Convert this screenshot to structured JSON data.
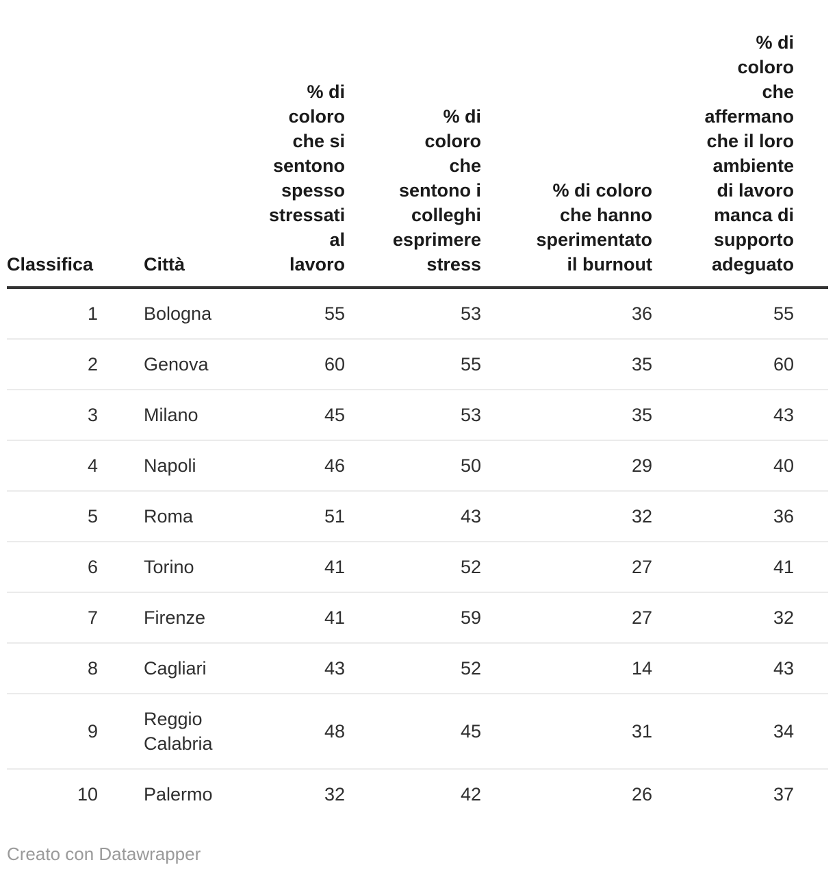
{
  "chart_data": {
    "type": "table",
    "title": "",
    "columns": [
      "Classifica",
      "Città",
      "% di coloro che si sentono spesso stressati al lavoro",
      "% di coloro che sentono i colleghi esprimere stress",
      "% di coloro che hanno sperimentato il burnout",
      "% di coloro che affermano che il loro ambiente di lavoro manca di supporto adeguato"
    ],
    "rows": [
      [
        1,
        "Bologna",
        55,
        53,
        36,
        55
      ],
      [
        2,
        "Genova",
        60,
        55,
        35,
        60
      ],
      [
        3,
        "Milano",
        45,
        53,
        35,
        43
      ],
      [
        4,
        "Napoli",
        46,
        50,
        29,
        40
      ],
      [
        5,
        "Roma",
        51,
        43,
        32,
        36
      ],
      [
        6,
        "Torino",
        41,
        52,
        27,
        41
      ],
      [
        7,
        "Firenze",
        41,
        59,
        27,
        32
      ],
      [
        8,
        "Cagliari",
        43,
        52,
        14,
        43
      ],
      [
        9,
        "Reggio Calabria",
        48,
        45,
        31,
        34
      ],
      [
        10,
        "Palermo",
        32,
        42,
        26,
        37
      ]
    ]
  },
  "table": {
    "header_display": [
      "Classifica",
      "Città",
      "% di\ncoloro\nche si\nsentono\nspesso\nstressati\nal lavoro",
      "% di\ncoloro\nche\nsentono i\ncolleghi\nesprimere\nstress",
      "% di coloro\nche hanno\nsperimentato\nil burnout",
      "% di\ncoloro\nche\naffermano\nche il loro\nambiente\ndi lavoro\nmanca di\nsupporto\nadeguato"
    ]
  },
  "footer": {
    "attribution": "Creato con Datawrapper"
  },
  "colors": {
    "header_text": "#1a1a1a",
    "body_text": "#2f2f2f",
    "header_rule": "#333333",
    "row_divider": "#ebebeb",
    "attribution_text": "#9a9a9a",
    "background": "#ffffff"
  }
}
